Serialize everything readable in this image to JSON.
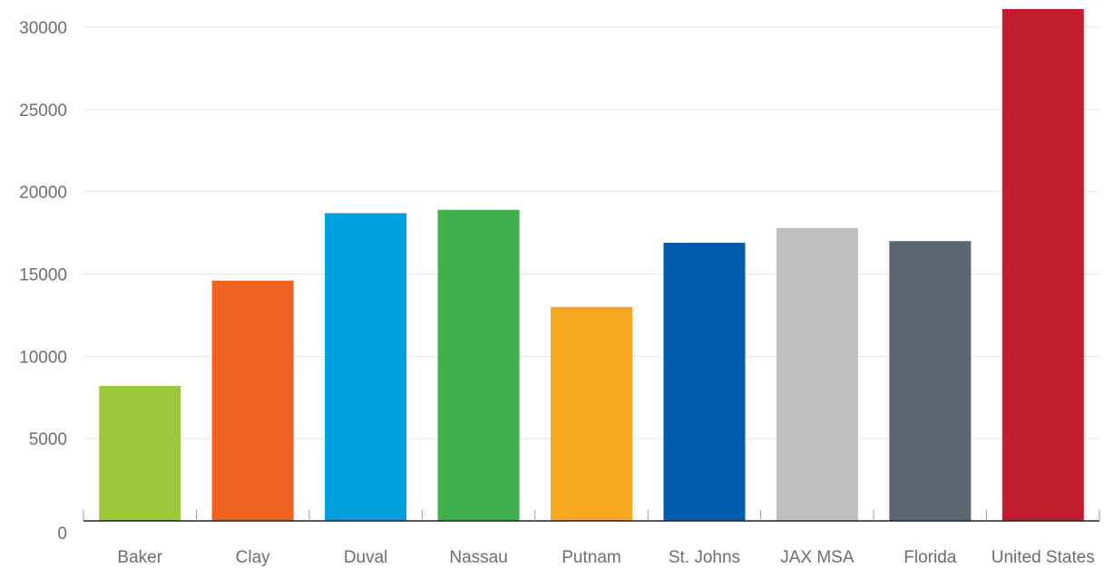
{
  "chart_data": {
    "type": "bar",
    "title": "",
    "xlabel": "",
    "ylabel": "",
    "ylim": [
      0,
      30000
    ],
    "yticks": [
      0,
      5000,
      10000,
      15000,
      20000,
      25000,
      30000
    ],
    "grid": true,
    "categories": [
      "Baker",
      "Clay",
      "Duval",
      "Nassau",
      "Putnam",
      "St. Johns",
      "JAX MSA",
      "Florida",
      "United States"
    ],
    "values": [
      8200,
      14600,
      18700,
      18900,
      13000,
      16900,
      17800,
      17000,
      31100
    ],
    "colors": [
      "#9bc83c",
      "#f06222",
      "#00a0dc",
      "#3fb04b",
      "#f5a81e",
      "#005da9",
      "#bdbfc1",
      "#5b6670",
      "#c21d2e"
    ]
  }
}
